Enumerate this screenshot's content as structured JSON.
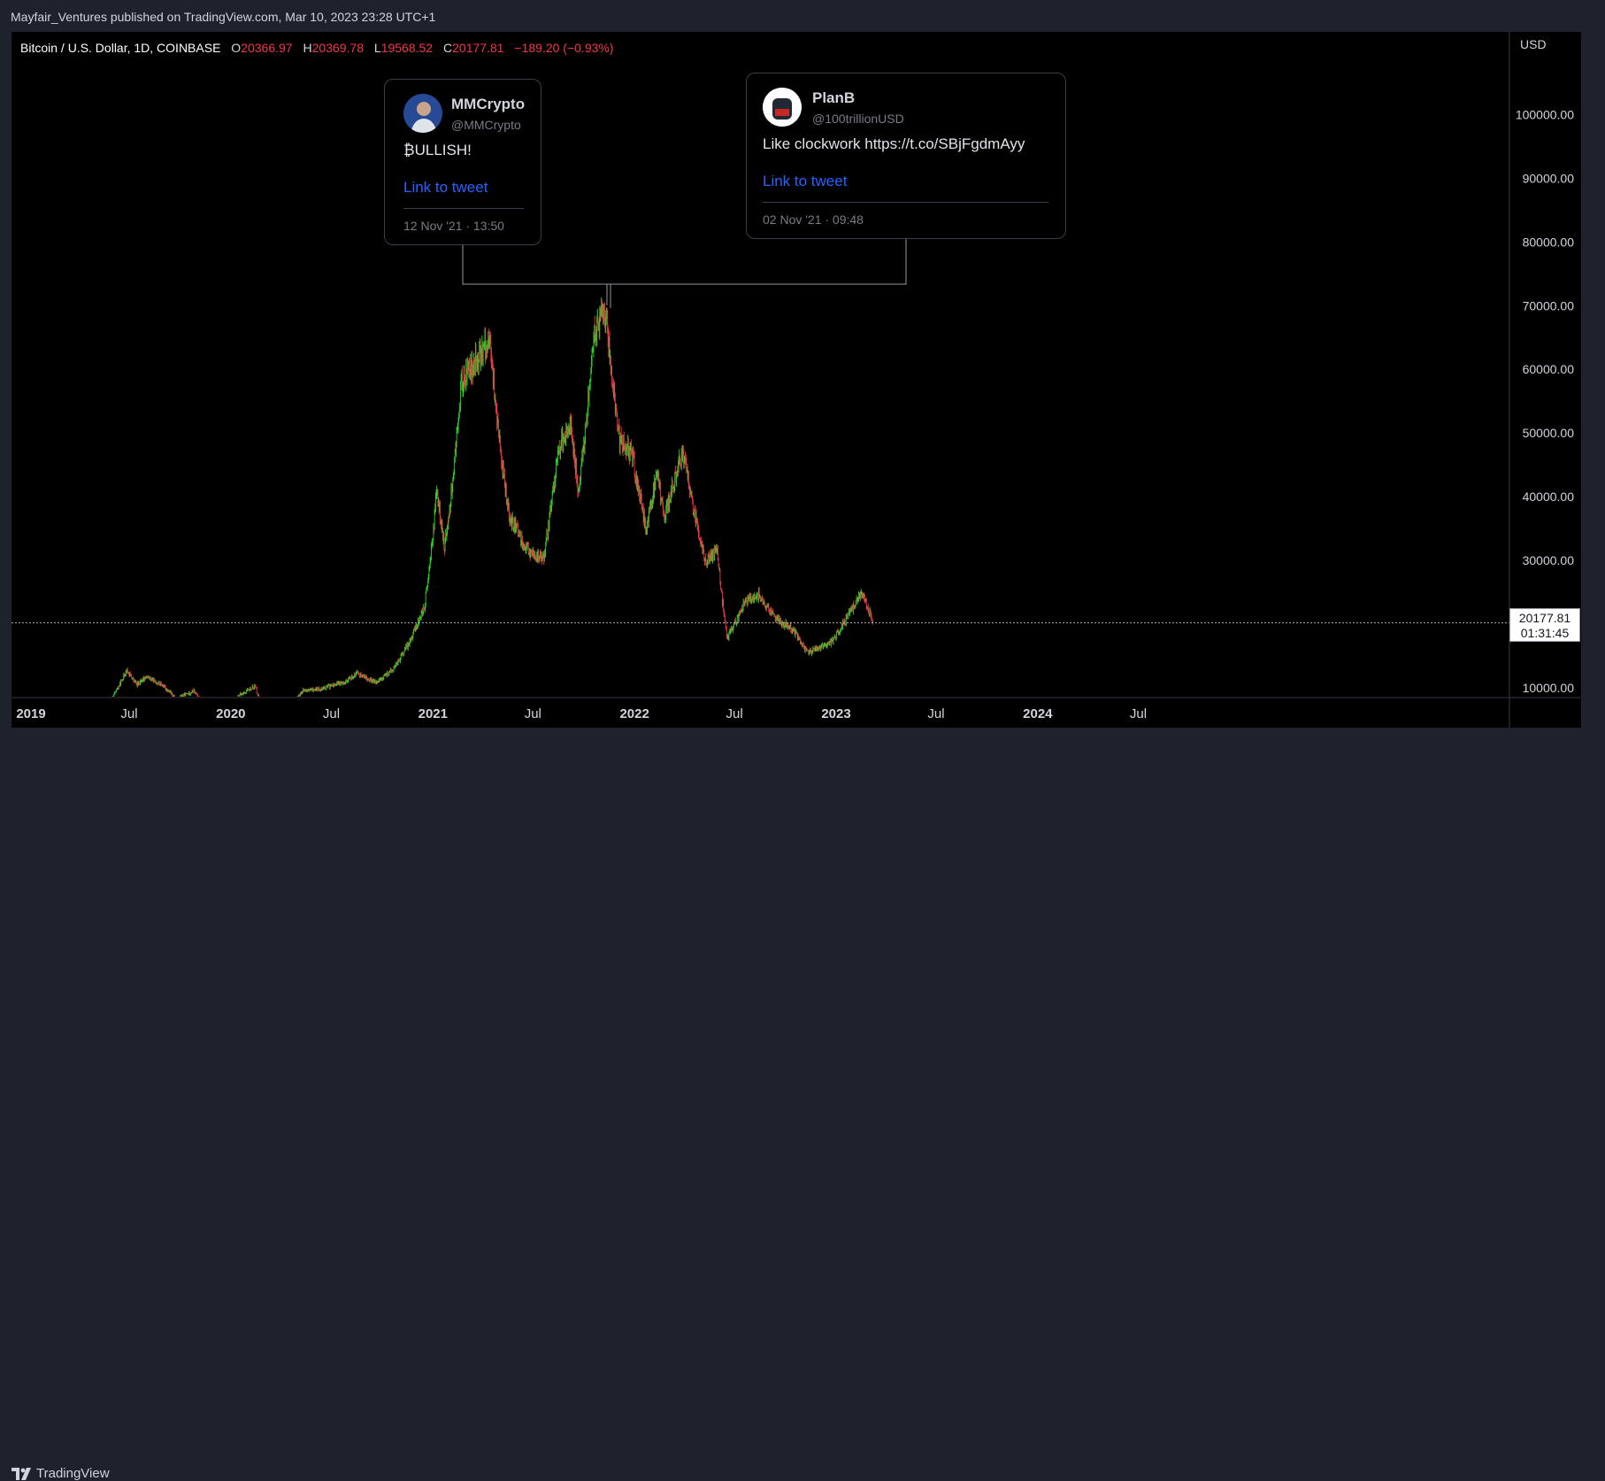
{
  "header": {
    "published": "Mayfair_Ventures published on TradingView.com, Mar 10, 2023 23:28 UTC+1"
  },
  "legend": {
    "symbol": "Bitcoin / U.S. Dollar, 1D, COINBASE",
    "o_label": "O",
    "o_value": "20366.97",
    "h_label": "H",
    "h_value": "20369.78",
    "l_label": "L",
    "l_value": "19568.52",
    "c_label": "C",
    "c_value": "20177.81",
    "change": "−189.20 (−0.93%)"
  },
  "price_badge": {
    "price": "20177.81",
    "countdown": "01:31:45"
  },
  "tweets": [
    {
      "name": "MMCrypto",
      "handle": "@MMCrypto",
      "text": "₿ULLISH!",
      "link": "Link to tweet",
      "date": "12 Nov '21 · 13:50"
    },
    {
      "name": "PlanB",
      "handle": "@100trillionUSD",
      "text": "Like clockwork https://t.co/SBjFgdmAyy",
      "link": "Link to tweet",
      "date": "02 Nov '21 · 09:48"
    }
  ],
  "footer": {
    "brand": "TradingView"
  },
  "colors": {
    "up": "#26d926",
    "down": "#f23645",
    "background": "#000000",
    "link": "#2962ff"
  },
  "chart_data": {
    "type": "line",
    "series": [
      {
        "x": [
          "2019-04-01",
          "2019-05-01",
          "2019-06-01",
          "2019-06-26",
          "2019-07-15",
          "2019-08-01",
          "2019-09-01",
          "2019-09-25",
          "2019-10-26",
          "2019-11-20",
          "2019-12-17",
          "2020-01-15",
          "2020-02-14",
          "2020-03-12",
          "2020-04-15",
          "2020-05-10",
          "2020-06-10",
          "2020-07-27",
          "2020-08-17",
          "2020-09-20",
          "2020-10-21",
          "2020-11-15",
          "2020-12-17",
          "2021-01-08",
          "2021-01-22",
          "2021-02-21",
          "2021-03-13",
          "2021-04-14",
          "2021-05-19",
          "2021-06-22",
          "2021-07-20",
          "2021-08-15",
          "2021-09-07",
          "2021-09-21",
          "2021-10-20",
          "2021-11-10",
          "2021-12-04",
          "2021-12-27",
          "2022-01-22",
          "2022-02-10",
          "2022-02-24",
          "2022-03-29",
          "2022-05-09",
          "2022-05-31",
          "2022-06-18",
          "2022-07-20",
          "2022-08-14",
          "2022-09-12",
          "2022-10-15",
          "2022-11-09",
          "2022-11-21",
          "2022-12-20",
          "2023-01-13",
          "2023-02-16",
          "2023-03-10"
        ],
        "y": [
          4100,
          5700,
          8500,
          12800,
          10500,
          11800,
          10300,
          8300,
          9500,
          7200,
          6700,
          8700,
          10300,
          4900,
          7000,
          9500,
          9800,
          11000,
          12300,
          10800,
          12900,
          16500,
          23000,
          41000,
          32000,
          57500,
          60500,
          64800,
          37000,
          31500,
          30000,
          47000,
          52000,
          41000,
          66000,
          69000,
          49000,
          47000,
          35000,
          44000,
          37000,
          47500,
          30000,
          31500,
          17800,
          23500,
          24500,
          21000,
          19200,
          15700,
          15800,
          16800,
          19900,
          25000,
          20177.81
        ]
      }
    ],
    "x_ticks": [
      "2019",
      "Jul",
      "2020",
      "Jul",
      "2021",
      "Jul",
      "2022",
      "Jul",
      "2023",
      "Jul",
      "2024",
      "Jul"
    ],
    "y_ticks": [
      "10000.00",
      "20000.00",
      "30000.00",
      "40000.00",
      "50000.00",
      "60000.00",
      "70000.00",
      "80000.00",
      "90000.00",
      "100000.00"
    ],
    "y_unit": "USD",
    "ylim": [
      7900,
      110000
    ],
    "grid": false,
    "current_price_line": 20177.81
  }
}
